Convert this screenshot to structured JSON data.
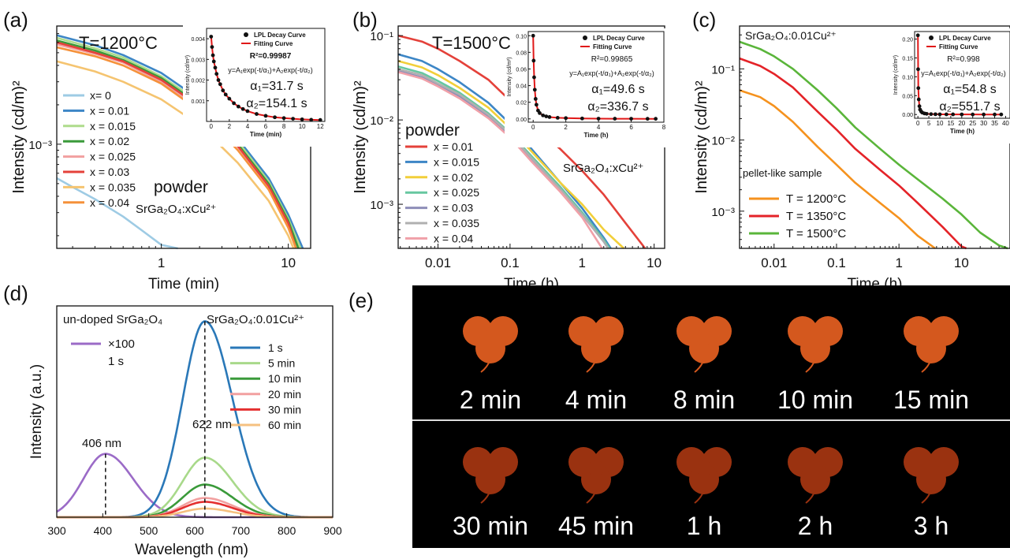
{
  "panels": {
    "a": {
      "label": "(a)",
      "temp": "T=1200°C",
      "note1": "powder",
      "note2": "SrGa₂O₄:xCu²⁺"
    },
    "b": {
      "label": "(b)",
      "temp": "T=1500°C",
      "note1": "powder",
      "note2": "SrGa₂O₄:xCu²⁺"
    },
    "c": {
      "label": "(c)",
      "title": "SrGa₂O₄:0.01Cu²⁺",
      "note1": "pellet-like sample"
    },
    "d": {
      "label": "(d)",
      "note_left": "un-doped SrGa₂O₄",
      "note_right": "SrGa₂O₄:0.01Cu²⁺",
      "scale": "×100",
      "scale_time": "1 s",
      "peak1": "406 nm",
      "peak2": "622 nm"
    },
    "e": {
      "label": "(e)"
    }
  },
  "inset_text": {
    "legend1": "LPL Decay Curve",
    "legend2": "Fitting Curve",
    "a": {
      "r2": "R²=0.99987",
      "eq": "y=A₁exp(-t/α₁)+A₂exp(-t/α₂)",
      "a1": "α₁=31.7 s",
      "a2": "α₂=154.1 s",
      "xlabel": "Time (min)",
      "ylabel": "Intensity (cd/m²)"
    },
    "b": {
      "r2": "R²=0.99865",
      "eq": "y=A₁exp(-t/α₁)+A₂exp(-t/α₂)",
      "a1": "α₁=49.6 s",
      "a2": "α₂=336.7 s",
      "xlabel": "Time (h)",
      "ylabel": "Intensity (cd/m²)"
    },
    "c": {
      "r2": "R²=0.998",
      "eq": "y=A₁exp(-t/α₁)+A₂exp(-t/α₂)",
      "a1": "α₁=54.8 s",
      "a2": "α₂=551.7 s",
      "xlabel": "Time (h)",
      "ylabel": "Intensity (cd/m²)"
    }
  },
  "photos": {
    "row1": [
      "2 min",
      "4 min",
      "8 min",
      "10 min",
      "15 min"
    ],
    "row2": [
      "30 min",
      "45 min",
      "1 h",
      "2 h",
      "3 h"
    ],
    "row1_color": "#d4581e",
    "row2_color": "#9a3210"
  },
  "chart_data": [
    {
      "id": "a",
      "type": "line",
      "xlabel": "Time (min)",
      "ylabel": "Intensity (cd/m)²",
      "xscale": "log",
      "yscale": "log",
      "xlim": [
        0.15,
        15
      ],
      "ylim": [
        0.00016,
        0.008
      ],
      "xticks": [
        {
          "v": 1,
          "t": "1"
        },
        {
          "v": 10,
          "t": "10"
        }
      ],
      "yticks": [
        {
          "v": 0.001,
          "t": "10⁻³"
        }
      ],
      "series": [
        {
          "name": "x= 0",
          "color": "#9ecbe4",
          "x": [
            0.15,
            0.2,
            0.3,
            0.5,
            0.7,
            1.0,
            1.35
          ],
          "y": [
            0.00055,
            0.00047,
            0.00038,
            0.00028,
            0.00022,
            0.00017,
            0.00016
          ]
        },
        {
          "name": "x = 0.01",
          "color": "#3d86c6",
          "x": [
            0.15,
            0.3,
            0.5,
            1,
            2,
            4,
            7,
            10,
            13
          ],
          "y": [
            0.0068,
            0.0057,
            0.0048,
            0.0035,
            0.0022,
            0.0011,
            0.00055,
            0.00029,
            0.00016
          ]
        },
        {
          "name": "x = 0.015",
          "color": "#aedc8c",
          "x": [
            0.15,
            0.3,
            0.5,
            1,
            2,
            4,
            7,
            10,
            12.5
          ],
          "y": [
            0.0065,
            0.0054,
            0.0046,
            0.0033,
            0.0021,
            0.00105,
            0.00052,
            0.00027,
            0.00016
          ]
        },
        {
          "name": "x = 0.02",
          "color": "#3a9a3a",
          "x": [
            0.15,
            0.3,
            0.5,
            1,
            2,
            4,
            7,
            10,
            12
          ],
          "y": [
            0.0062,
            0.0052,
            0.0044,
            0.0032,
            0.002,
            0.001,
            0.0005,
            0.00026,
            0.00016
          ]
        },
        {
          "name": "x = 0.025",
          "color": "#f2a0a0",
          "x": [
            0.15,
            0.3,
            0.5,
            1,
            2,
            4,
            7,
            10,
            11.5
          ],
          "y": [
            0.0058,
            0.0049,
            0.0042,
            0.003,
            0.0019,
            0.00095,
            0.00047,
            0.00024,
            0.00016
          ]
        },
        {
          "name": "x = 0.03",
          "color": "#e4413a",
          "x": [
            0.15,
            0.3,
            0.5,
            1,
            2,
            4,
            7,
            10,
            11.5
          ],
          "y": [
            0.006,
            0.005,
            0.0043,
            0.0031,
            0.00195,
            0.00097,
            0.00048,
            0.00025,
            0.00016
          ]
        },
        {
          "name": "x = 0.035",
          "color": "#f5c470",
          "x": [
            0.15,
            0.3,
            0.5,
            1,
            2,
            4,
            7,
            10,
            11
          ],
          "y": [
            0.0043,
            0.0036,
            0.003,
            0.0022,
            0.0014,
            0.00072,
            0.00037,
            0.0002,
            0.00016
          ]
        },
        {
          "name": "x = 0.04",
          "color": "#f5913a",
          "x": [
            0.15,
            0.3,
            0.5,
            1,
            2,
            4,
            7,
            10,
            11.5
          ],
          "y": [
            0.0055,
            0.0047,
            0.004,
            0.0029,
            0.0018,
            0.0009,
            0.00045,
            0.00023,
            0.00016
          ]
        }
      ]
    },
    {
      "id": "b",
      "type": "line",
      "xlabel": "Time (h)",
      "ylabel": "Intensity (cd/m)²",
      "xscale": "log",
      "yscale": "log",
      "xlim": [
        0.0028,
        14
      ],
      "ylim": [
        0.0003,
        0.13
      ],
      "xticks": [
        {
          "v": 0.01,
          "t": "0.01"
        },
        {
          "v": 0.1,
          "t": "0.1"
        },
        {
          "v": 1,
          "t": "1"
        },
        {
          "v": 10,
          "t": "10"
        }
      ],
      "yticks": [
        {
          "v": 0.1,
          "t": "10⁻¹"
        },
        {
          "v": 0.01,
          "t": "10⁻²"
        },
        {
          "v": 0.001,
          "t": "10⁻³"
        }
      ],
      "series": [
        {
          "name": "x = 0.01",
          "color": "#e4413a",
          "x": [
            0.0028,
            0.006,
            0.01,
            0.02,
            0.05,
            0.1,
            0.2,
            0.5,
            1,
            2,
            4,
            7.5
          ],
          "y": [
            0.1,
            0.085,
            0.07,
            0.05,
            0.03,
            0.017,
            0.009,
            0.0045,
            0.0025,
            0.0013,
            0.0006,
            0.0003
          ]
        },
        {
          "name": "x = 0.015",
          "color": "#3d86c6",
          "x": [
            0.0028,
            0.006,
            0.01,
            0.02,
            0.05,
            0.1,
            0.2,
            0.5,
            1,
            2,
            2.5
          ],
          "y": [
            0.06,
            0.05,
            0.04,
            0.028,
            0.016,
            0.009,
            0.0045,
            0.0018,
            0.0009,
            0.0004,
            0.0003
          ]
        },
        {
          "name": "x = 0.02",
          "color": "#f2cf3a",
          "x": [
            0.0028,
            0.006,
            0.01,
            0.02,
            0.05,
            0.1,
            0.2,
            0.5,
            1,
            2,
            3.8
          ],
          "y": [
            0.05,
            0.042,
            0.034,
            0.024,
            0.014,
            0.008,
            0.0042,
            0.0018,
            0.001,
            0.0005,
            0.0003
          ]
        },
        {
          "name": "x = 0.025",
          "color": "#67c7a0",
          "x": [
            0.0028,
            0.006,
            0.01,
            0.02,
            0.05,
            0.1,
            0.2,
            0.5,
            1,
            2,
            2.4
          ],
          "y": [
            0.043,
            0.036,
            0.029,
            0.021,
            0.012,
            0.007,
            0.0037,
            0.0016,
            0.0008,
            0.00038,
            0.0003
          ]
        },
        {
          "name": "x = 0.03",
          "color": "#8e8eb8",
          "x": [
            0.0028,
            0.006,
            0.01,
            0.02,
            0.05,
            0.1,
            0.2,
            0.5,
            1,
            2,
            2.3
          ],
          "y": [
            0.038,
            0.032,
            0.026,
            0.019,
            0.011,
            0.0065,
            0.0034,
            0.0015,
            0.00075,
            0.00036,
            0.0003
          ]
        },
        {
          "name": "x = 0.035",
          "color": "#b0b0b0",
          "x": [
            0.0028,
            0.006,
            0.01,
            0.02,
            0.05,
            0.1,
            0.2,
            0.5,
            1,
            2,
            2.3
          ],
          "y": [
            0.04,
            0.034,
            0.027,
            0.02,
            0.0115,
            0.0068,
            0.0035,
            0.0015,
            0.00076,
            0.00036,
            0.0003
          ]
        },
        {
          "name": "x = 0.04",
          "color": "#f0a0a8",
          "x": [
            0.0028,
            0.006,
            0.01,
            0.02,
            0.05,
            0.1,
            0.2,
            0.5,
            1,
            1.9
          ],
          "y": [
            0.037,
            0.031,
            0.025,
            0.018,
            0.0105,
            0.0062,
            0.0032,
            0.0014,
            0.0007,
            0.0003
          ]
        }
      ]
    },
    {
      "id": "c",
      "type": "line",
      "xlabel": "Time (h)",
      "ylabel": "Intensity (cd/m)²",
      "xscale": "log",
      "yscale": "log",
      "xlim": [
        0.0028,
        60
      ],
      "ylim": [
        0.0003,
        0.4
      ],
      "xticks": [
        {
          "v": 0.01,
          "t": "0.01"
        },
        {
          "v": 0.1,
          "t": "0.1"
        },
        {
          "v": 1,
          "t": "1"
        },
        {
          "v": 10,
          "t": "10"
        }
      ],
      "yticks": [
        {
          "v": 0.1,
          "t": "10⁻¹"
        },
        {
          "v": 0.01,
          "t": "10⁻²"
        },
        {
          "v": 0.001,
          "t": "10⁻³"
        }
      ],
      "series": [
        {
          "name": "T = 1200°C",
          "color": "#f5921e",
          "x": [
            0.0028,
            0.006,
            0.01,
            0.02,
            0.05,
            0.1,
            0.2,
            0.5,
            1,
            2,
            3.8
          ],
          "y": [
            0.05,
            0.04,
            0.03,
            0.018,
            0.008,
            0.0045,
            0.0025,
            0.0013,
            0.0008,
            0.00045,
            0.0003
          ]
        },
        {
          "name": "T = 1350°C",
          "color": "#e42328",
          "x": [
            0.0028,
            0.006,
            0.01,
            0.02,
            0.05,
            0.1,
            0.2,
            0.5,
            1,
            2,
            5,
            10,
            12
          ],
          "y": [
            0.14,
            0.11,
            0.085,
            0.055,
            0.025,
            0.014,
            0.0075,
            0.0038,
            0.0023,
            0.0013,
            0.0006,
            0.00032,
            0.0003
          ]
        },
        {
          "name": "T = 1500°C",
          "color": "#5ab53a",
          "x": [
            0.0028,
            0.006,
            0.01,
            0.02,
            0.05,
            0.1,
            0.2,
            0.5,
            1,
            2,
            5,
            10,
            20,
            40,
            55
          ],
          "y": [
            0.24,
            0.19,
            0.15,
            0.1,
            0.05,
            0.028,
            0.015,
            0.0075,
            0.0045,
            0.0028,
            0.0015,
            0.0009,
            0.0005,
            0.00033,
            0.0003
          ]
        }
      ]
    },
    {
      "id": "a-inset",
      "type": "scatter",
      "xlabel": "Time (min)",
      "ylabel": "Intensity (cd/m²)",
      "xlim": [
        -0.5,
        12.5
      ],
      "ylim": [
        0,
        0.0045
      ],
      "xticks": [
        0,
        2,
        4,
        6,
        8,
        10,
        12
      ],
      "yticks": [
        0.001,
        0.002,
        0.003,
        0.004
      ],
      "yticklabels": [
        "0.001",
        "0.002",
        "0.003",
        "0.004"
      ],
      "points_x": [
        0,
        0.1,
        0.2,
        0.3,
        0.45,
        0.6,
        0.8,
        1.0,
        1.3,
        1.6,
        2.0,
        2.5,
        3,
        3.5,
        4,
        5,
        6,
        7,
        8,
        9,
        10,
        11,
        12
      ],
      "points_y": [
        0.0041,
        0.0036,
        0.0032,
        0.0029,
        0.0026,
        0.0023,
        0.002,
        0.0018,
        0.0015,
        0.0013,
        0.0011,
        0.00088,
        0.00072,
        0.0006,
        0.0005,
        0.00036,
        0.00027,
        0.0002,
        0.00016,
        0.00013,
        0.0001,
        8e-05,
        7e-05
      ]
    },
    {
      "id": "b-inset",
      "type": "scatter",
      "xlabel": "Time (h)",
      "ylabel": "Intensity (cd/m²)",
      "xlim": [
        -0.3,
        8
      ],
      "ylim": [
        -0.004,
        0.105
      ],
      "xticks": [
        0,
        2,
        4,
        6,
        8
      ],
      "yticks": [
        0,
        0.02,
        0.04,
        0.06,
        0.08,
        0.1
      ],
      "yticklabels": [
        "0.00",
        "0.02",
        "0.04",
        "0.06",
        "0.08",
        "0.10"
      ],
      "points_x": [
        0,
        0.03,
        0.06,
        0.1,
        0.15,
        0.2,
        0.3,
        0.4,
        0.6,
        0.8,
        1.0,
        1.5,
        2,
        3,
        4,
        5,
        6,
        7,
        7.5
      ],
      "points_y": [
        0.1,
        0.07,
        0.05,
        0.035,
        0.024,
        0.017,
        0.01,
        0.007,
        0.0042,
        0.003,
        0.0022,
        0.0013,
        0.0009,
        0.0005,
        0.0003,
        0.0002,
        0.00015,
        0.0001,
        0.0001
      ]
    },
    {
      "id": "c-inset",
      "type": "scatter",
      "xlabel": "Time (h)",
      "ylabel": "Intensity (cd/m²)",
      "xlim": [
        -1.5,
        42
      ],
      "ylim": [
        -0.01,
        0.22
      ],
      "xticks": [
        0,
        5,
        10,
        15,
        20,
        25,
        30,
        35,
        40
      ],
      "yticks": [
        0,
        0.05,
        0.1,
        0.15,
        0.2
      ],
      "yticklabels": [
        "0.00",
        "0.05",
        "0.10",
        "0.15",
        "0.20"
      ],
      "points_x": [
        0,
        0.1,
        0.2,
        0.4,
        0.7,
        1,
        1.5,
        2,
        3,
        4,
        6,
        8,
        10,
        13,
        16,
        20,
        25,
        30,
        35,
        38
      ],
      "points_y": [
        0.21,
        0.12,
        0.07,
        0.04,
        0.022,
        0.013,
        0.008,
        0.005,
        0.0028,
        0.0018,
        0.001,
        0.0007,
        0.0005,
        0.0004,
        0.0003,
        0.0002,
        0.00015,
        0.0001,
        0.0001,
        0.0001
      ]
    },
    {
      "id": "d",
      "type": "line",
      "xlabel": "Wavelength (nm)",
      "ylabel": "Intensity (a.u.)",
      "xlim": [
        300,
        900
      ],
      "ylim": [
        0,
        1.1
      ],
      "xticks": [
        300,
        400,
        500,
        600,
        700,
        800,
        900
      ],
      "series": [
        {
          "name": "×100",
          "color": "#9b6bc7",
          "peak": 406,
          "amp": 0.33,
          "width": 48
        },
        {
          "name": "1 s",
          "color": "#2a78b8",
          "peak": 622,
          "amp": 1.02,
          "width": 48
        },
        {
          "name": "5 min",
          "color": "#a8d98a",
          "peak": 622,
          "amp": 0.31,
          "width": 48
        },
        {
          "name": "10 min",
          "color": "#3a9a3a",
          "peak": 622,
          "amp": 0.17,
          "width": 48
        },
        {
          "name": "20 min",
          "color": "#f2a0a0",
          "peak": 622,
          "amp": 0.1,
          "width": 48
        },
        {
          "name": "30 min",
          "color": "#e43030",
          "peak": 622,
          "amp": 0.08,
          "width": 48
        },
        {
          "name": "60 min",
          "color": "#f5c080",
          "peak": 622,
          "amp": 0.045,
          "width": 48
        }
      ]
    }
  ]
}
